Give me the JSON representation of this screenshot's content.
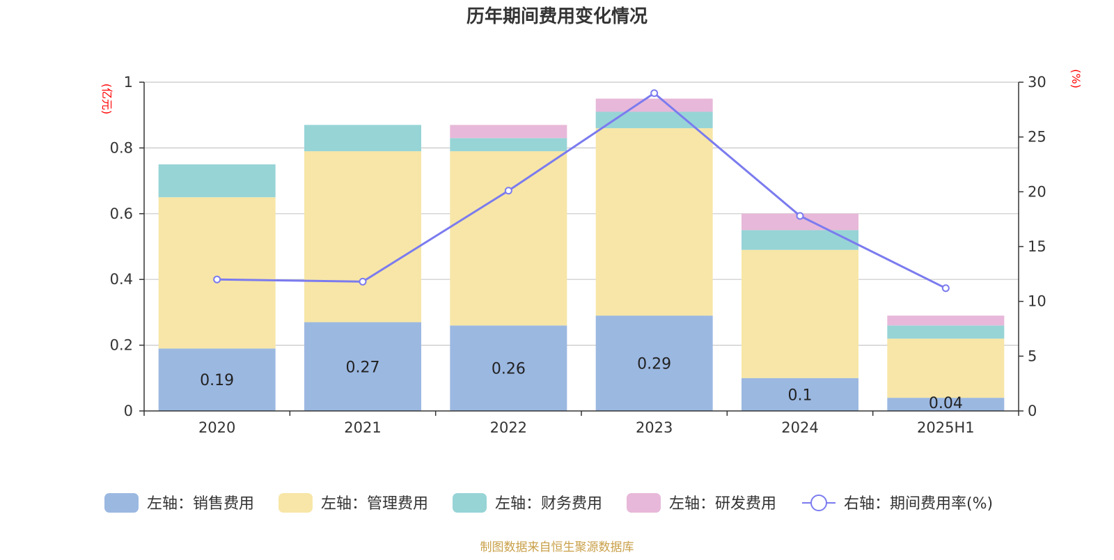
{
  "title": "历年期间费用变化情况",
  "source": "制图数据来自恒生聚源数据库",
  "chart_data": {
    "type": "bar",
    "stacked": true,
    "categories": [
      "2020",
      "2021",
      "2022",
      "2023",
      "2024",
      "2025H1"
    ],
    "left_axis": {
      "unit": "(亿元)",
      "ylim": [
        0,
        1
      ],
      "ticks": [
        "0",
        "0.2",
        "0.4",
        "0.6",
        "0.8",
        "1"
      ],
      "tick_values": [
        0,
        0.2,
        0.4,
        0.6,
        0.8,
        1
      ]
    },
    "right_axis": {
      "unit": "(%)",
      "ylim": [
        0,
        30
      ],
      "ticks": [
        "0",
        "5",
        "10",
        "15",
        "20",
        "25",
        "30"
      ],
      "tick_values": [
        0,
        5,
        10,
        15,
        20,
        25,
        30
      ]
    },
    "series": [
      {
        "name": "左轴：销售费用",
        "axis": "left",
        "color": "#9bb8e1",
        "values": [
          0.19,
          0.27,
          0.26,
          0.29,
          0.1,
          0.04
        ],
        "labels": [
          "0.19",
          "0.27",
          "0.26",
          "0.29",
          "0.1",
          "0.04"
        ]
      },
      {
        "name": "左轴：管理费用",
        "axis": "left",
        "color": "#f7e6a7",
        "values": [
          0.46,
          0.52,
          0.53,
          0.57,
          0.39,
          0.18
        ]
      },
      {
        "name": "左轴：财务费用",
        "axis": "left",
        "color": "#97d4d6",
        "values": [
          0.1,
          0.08,
          0.04,
          0.05,
          0.06,
          0.04
        ]
      },
      {
        "name": "左轴：研发费用",
        "axis": "left",
        "color": "#e7b8d9",
        "values": [
          0,
          0,
          0.04,
          0.04,
          0.05,
          0.03
        ]
      }
    ],
    "line_series": {
      "name": "右轴：期间费用率(%)",
      "axis": "right",
      "type": "line",
      "color": "#7b7bef",
      "values": [
        12.0,
        11.8,
        20.1,
        29.0,
        17.8,
        11.2
      ]
    },
    "grid": true,
    "legend_position": "bottom"
  }
}
